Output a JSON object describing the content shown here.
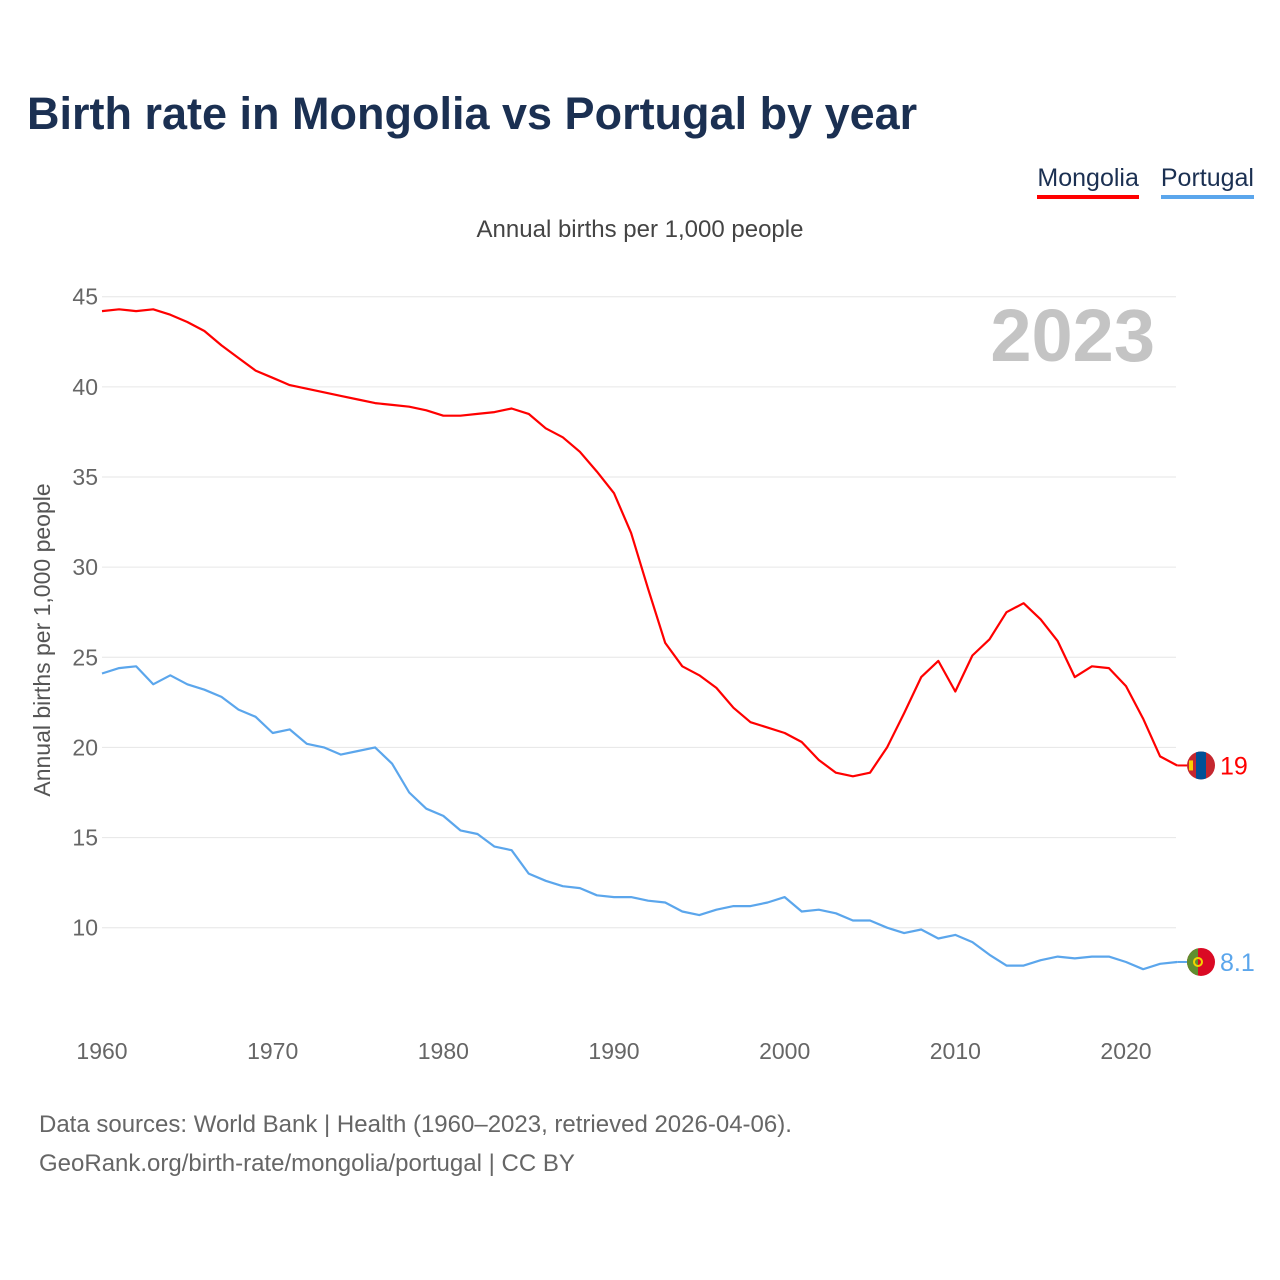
{
  "title": "Birth rate in Mongolia vs Portugal by year",
  "subtitle": "Annual births per 1,000 people",
  "year_watermark": "2023",
  "footer": {
    "line1": "Data sources: World Bank | Health (1960–2023, retrieved 2026-04-06).",
    "line2": "GeoRank.org/birth-rate/mongolia/portugal | CC BY"
  },
  "chart_data": {
    "type": "line",
    "title": "Birth rate in Mongolia vs Portugal by year",
    "xlabel": "",
    "ylabel": "Annual births per 1,000 people",
    "xlim": [
      1960,
      2023
    ],
    "ylim": [
      7,
      45
    ],
    "grid": true,
    "legend_placement": "top-right",
    "x_ticks": [
      "1960",
      "1970",
      "1980",
      "1990",
      "2000",
      "2010",
      "2020"
    ],
    "y_ticks": [
      "10",
      "15",
      "20",
      "25",
      "30",
      "35",
      "40",
      "45"
    ],
    "x": [
      1960,
      1961,
      1962,
      1963,
      1964,
      1965,
      1966,
      1967,
      1968,
      1969,
      1970,
      1971,
      1972,
      1973,
      1974,
      1975,
      1976,
      1977,
      1978,
      1979,
      1980,
      1981,
      1982,
      1983,
      1984,
      1985,
      1986,
      1987,
      1988,
      1989,
      1990,
      1991,
      1992,
      1993,
      1994,
      1995,
      1996,
      1997,
      1998,
      1999,
      2000,
      2001,
      2002,
      2003,
      2004,
      2005,
      2006,
      2007,
      2008,
      2009,
      2010,
      2011,
      2012,
      2013,
      2014,
      2015,
      2016,
      2017,
      2018,
      2019,
      2020,
      2021,
      2022,
      2023
    ],
    "series": [
      {
        "name": "Mongolia",
        "color": "#ff0000",
        "end_label": "19",
        "values": [
          44.2,
          44.3,
          44.2,
          44.3,
          44.0,
          43.6,
          43.1,
          42.3,
          41.6,
          40.9,
          40.5,
          40.1,
          39.9,
          39.7,
          39.5,
          39.3,
          39.1,
          39.0,
          38.9,
          38.7,
          38.4,
          38.4,
          38.5,
          38.6,
          38.8,
          38.5,
          37.7,
          37.2,
          36.4,
          35.3,
          34.1,
          31.9,
          28.8,
          25.8,
          24.5,
          24.0,
          23.3,
          22.2,
          21.4,
          21.1,
          20.8,
          20.3,
          19.3,
          18.6,
          18.4,
          18.6,
          20.0,
          21.9,
          23.9,
          24.8,
          23.1,
          25.1,
          26.0,
          27.5,
          28.0,
          27.1,
          25.9,
          23.9,
          24.5,
          24.4,
          23.4,
          21.6,
          19.5,
          19.0
        ]
      },
      {
        "name": "Portugal",
        "color": "#5ba6ec",
        "end_label": "8.1",
        "values": [
          24.1,
          24.4,
          24.5,
          23.5,
          24.0,
          23.5,
          23.2,
          22.8,
          22.1,
          21.7,
          20.8,
          21.0,
          20.2,
          20.0,
          19.6,
          19.8,
          20.0,
          19.1,
          17.5,
          16.6,
          16.2,
          15.4,
          15.2,
          14.5,
          14.3,
          13.0,
          12.6,
          12.3,
          12.2,
          11.8,
          11.7,
          11.7,
          11.5,
          11.4,
          10.9,
          10.7,
          11.0,
          11.2,
          11.2,
          11.4,
          11.7,
          10.9,
          11.0,
          10.8,
          10.4,
          10.4,
          10.0,
          9.7,
          9.9,
          9.4,
          9.6,
          9.2,
          8.5,
          7.9,
          7.9,
          8.2,
          8.4,
          8.3,
          8.4,
          8.4,
          8.1,
          7.7,
          8.0,
          8.1
        ]
      }
    ]
  }
}
